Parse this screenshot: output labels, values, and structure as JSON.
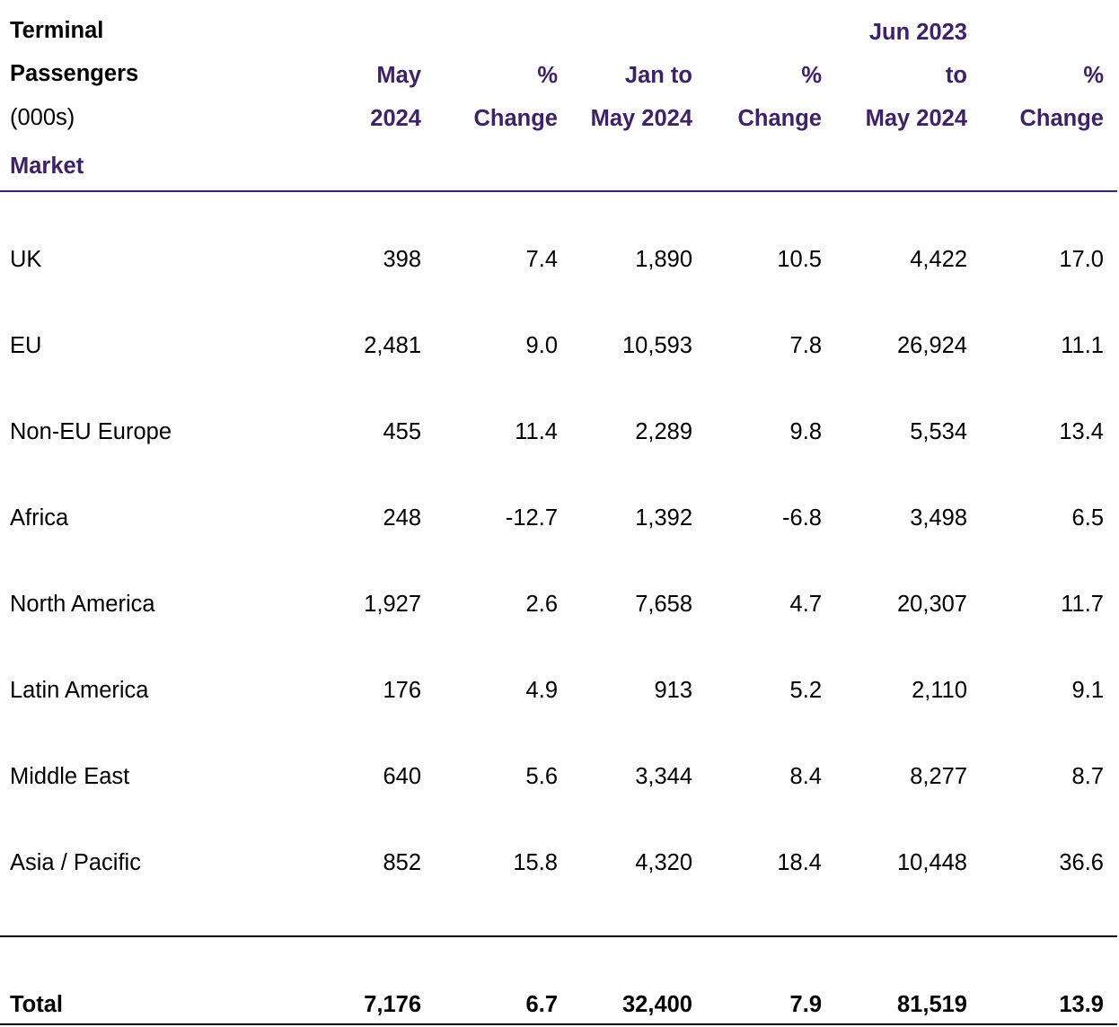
{
  "title": {
    "line1": "Terminal",
    "line2": "Passengers",
    "line3": "(000s)"
  },
  "market_label": "Market",
  "columns": [
    {
      "l1": "",
      "l2": "May",
      "l3": "2024"
    },
    {
      "l1": "",
      "l2": "%",
      "l3": "Change"
    },
    {
      "l1": "",
      "l2": "Jan to",
      "l3": "May 2024"
    },
    {
      "l1": "",
      "l2": "%",
      "l3": "Change"
    },
    {
      "l1": "Jun 2023",
      "l2": "to",
      "l3": "May 2024"
    },
    {
      "l1": "",
      "l2": "%",
      "l3": "Change"
    }
  ],
  "rows": [
    {
      "market": "UK",
      "values": [
        "398",
        "7.4",
        "1,890",
        "10.5",
        "4,422",
        "17.0"
      ]
    },
    {
      "market": "EU",
      "values": [
        "2,481",
        "9.0",
        "10,593",
        "7.8",
        "26,924",
        "11.1"
      ]
    },
    {
      "market": "Non-EU Europe",
      "values": [
        "455",
        "11.4",
        "2,289",
        "9.8",
        "5,534",
        "13.4"
      ]
    },
    {
      "market": "Africa",
      "values": [
        "248",
        "-12.7",
        "1,392",
        "-6.8",
        "3,498",
        "6.5"
      ]
    },
    {
      "market": "North America",
      "values": [
        "1,927",
        "2.6",
        "7,658",
        "4.7",
        "20,307",
        "11.7"
      ]
    },
    {
      "market": "Latin America",
      "values": [
        "176",
        "4.9",
        "913",
        "5.2",
        "2,110",
        "9.1"
      ]
    },
    {
      "market": "Middle East",
      "values": [
        "640",
        "5.6",
        "3,344",
        "8.4",
        "8,277",
        "8.7"
      ]
    },
    {
      "market": "Asia / Pacific",
      "values": [
        "852",
        "15.8",
        "4,320",
        "18.4",
        "10,448",
        "36.6"
      ]
    }
  ],
  "total": {
    "label": "Total",
    "values": [
      "7,176",
      "6.7",
      "32,400",
      "7.9",
      "81,519",
      "13.9"
    ]
  },
  "colors": {
    "header_accent": "#3f2167",
    "text": "#000000",
    "background": "#ffffff"
  }
}
